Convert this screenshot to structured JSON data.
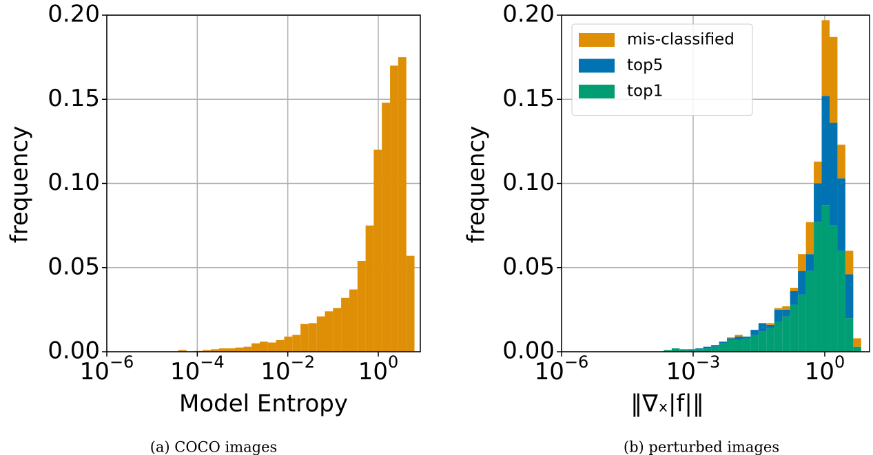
{
  "chart_data": [
    {
      "type": "histogram",
      "xlabel": "Model Entropy",
      "ylabel": "frequency",
      "caption": "(a) COCO images",
      "xlog": true,
      "grid": true,
      "color": "#de8f05",
      "xlim": [
        1e-06,
        8.49
      ],
      "ylim": [
        0,
        0.2
      ],
      "xticks": [
        {
          "value": 1e-06,
          "label": "10−6"
        },
        {
          "value": 0.0001,
          "label": "10−4"
        },
        {
          "value": 0.01,
          "label": "10−2"
        },
        {
          "value": 1,
          "label": "100"
        }
      ],
      "yticks": [
        {
          "value": 0,
          "label": "0.00"
        },
        0.05,
        {
          "value": 0.1,
          "label": "0.10"
        },
        0.15,
        {
          "value": 0.2,
          "label": "0.20"
        }
      ],
      "bins": [
        3.8e-05,
        5.75e-05,
        8.71e-05,
        0.000132,
        0.0002,
        0.000302,
        0.000457,
        0.000692,
        0.00105,
        0.00158,
        0.0024,
        0.00363,
        0.0055,
        0.00832,
        0.0126,
        0.0191,
        0.0288,
        0.0437,
        0.0661,
        0.1,
        0.151,
        0.229,
        0.347,
        0.525,
        0.794,
        1.2,
        1.82,
        2.75,
        4.17,
        6.31
      ],
      "values": [
        0.001,
        0,
        0.0005,
        0.001,
        0.0015,
        0.002,
        0.002,
        0.0025,
        0.003,
        0.005,
        0.006,
        0.0055,
        0.007,
        0.009,
        0.01,
        0.0165,
        0.017,
        0.021,
        0.024,
        0.026,
        0.032,
        0.037,
        0.054,
        0.075,
        0.12,
        0.148,
        0.17,
        0.175,
        0.057
      ]
    },
    {
      "type": "histogram",
      "xlabel": "‖∇ₓ|f|‖",
      "ylabel": "frequency",
      "caption": "(b) perturbed images",
      "xlog": true,
      "grid": true,
      "stacked": true,
      "legend": "upper left",
      "xlim": [
        1e-06,
        10.5
      ],
      "ylim": [
        0,
        0.2
      ],
      "xticks": [
        {
          "value": 1e-06,
          "label": "10−6"
        },
        {
          "value": 0.001,
          "label": "10−3"
        },
        {
          "value": 1,
          "label": "100"
        }
      ],
      "yticks": [
        {
          "value": 0,
          "label": "0.00"
        },
        0.05,
        {
          "value": 0.1,
          "label": "0.10"
        },
        0.15,
        {
          "value": 0.2,
          "label": "0.20"
        }
      ],
      "bins": [
        0.000214,
        0.000324,
        0.00049,
        0.000741,
        0.00112,
        0.0017,
        0.00257,
        0.00389,
        0.00589,
        0.00891,
        0.0135,
        0.0204,
        0.0309,
        0.0468,
        0.0708,
        0.107,
        0.162,
        0.245,
        0.372,
        0.562,
        0.851,
        1.29,
        1.95,
        2.95,
        4.47,
        6.76
      ],
      "series": [
        {
          "name": "top1",
          "color": "#029e73",
          "values": [
            0.001,
            0.002,
            0.0015,
            0.001,
            0.0015,
            0.002,
            0.003,
            0.005,
            0.007,
            0.007,
            0.008,
            0.01,
            0.012,
            0.014,
            0.018,
            0.021,
            0.028,
            0.034,
            0.048,
            0.077,
            0.087,
            0.075,
            0.06,
            0.02,
            0.003
          ]
        },
        {
          "name": "top5",
          "color": "#0173b2",
          "values": [
            0,
            0,
            0,
            0.0005,
            0.0005,
            0.001,
            0.001,
            0.001,
            0.001,
            0.002,
            0.001,
            0.003,
            0.005,
            0.002,
            0.007,
            0.004,
            0.008,
            0.014,
            0.01,
            0.023,
            0.065,
            0.061,
            0.043,
            0.026,
            0
          ]
        },
        {
          "name": "mis-classified",
          "color": "#de8f05",
          "values": [
            0,
            0,
            0,
            0,
            0,
            0,
            0,
            0,
            0.0005,
            0.001,
            0,
            0,
            0,
            0.001,
            0.001,
            0.002,
            0.002,
            0.01,
            0.019,
            0.013,
            0.045,
            0.051,
            0.02,
            0.014,
            0.005
          ]
        }
      ]
    }
  ]
}
